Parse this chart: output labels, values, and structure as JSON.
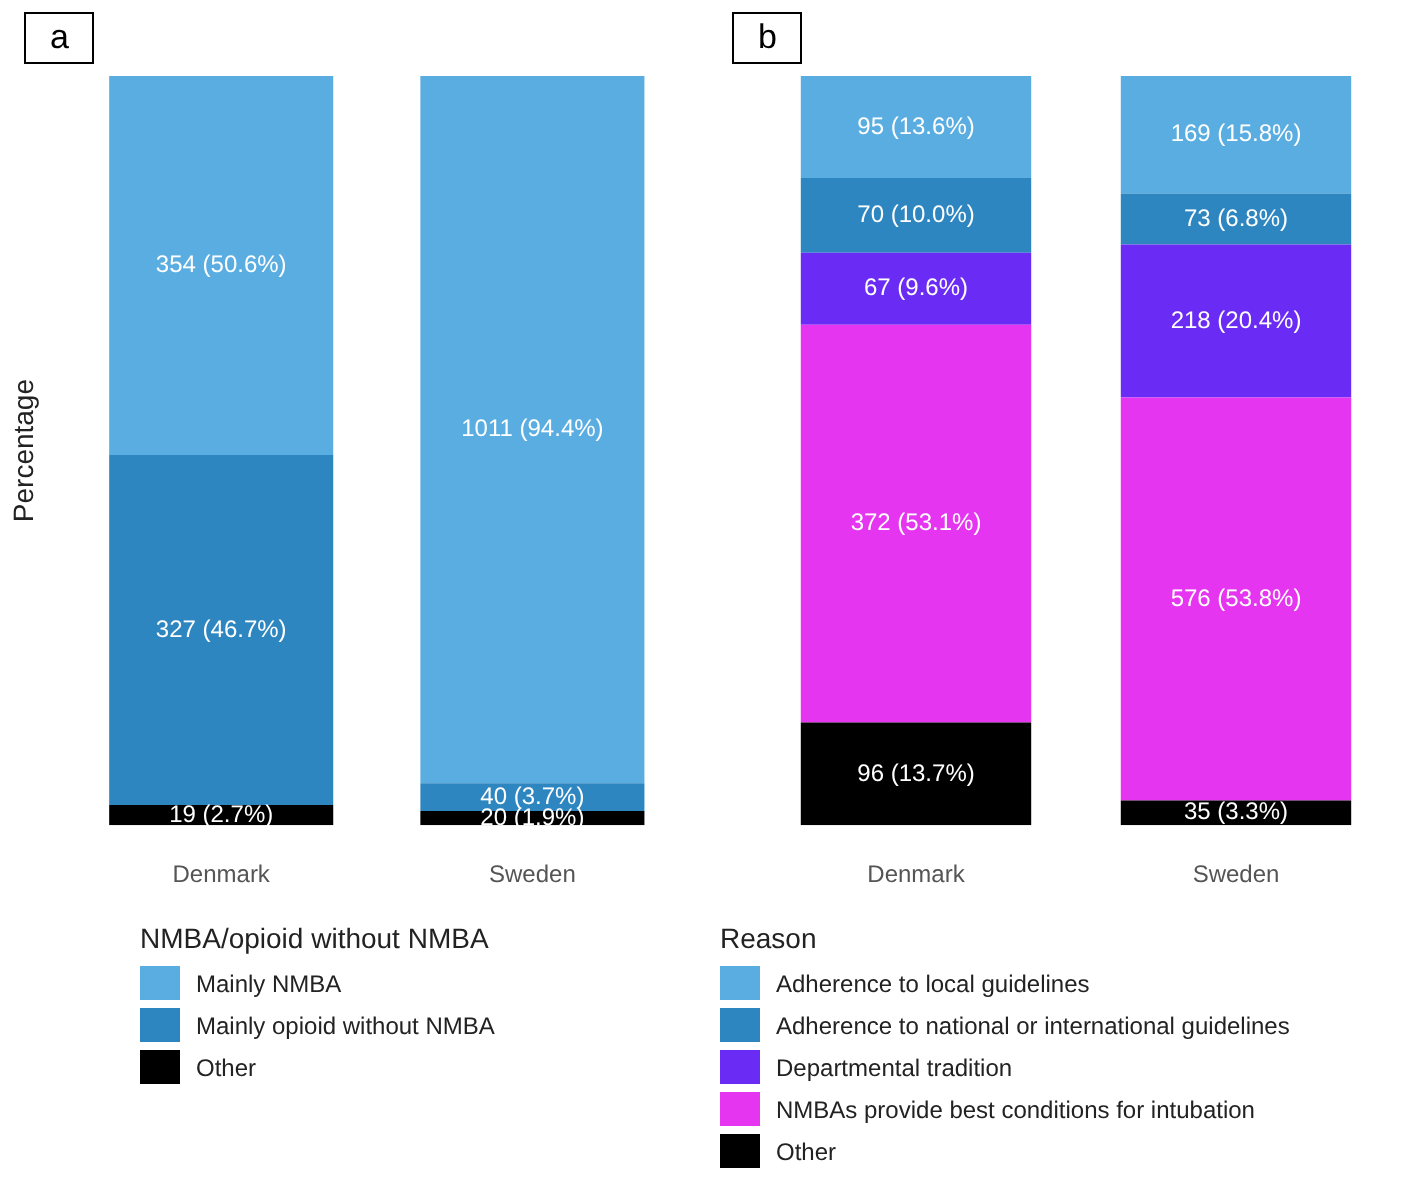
{
  "chart_data": [
    {
      "type": "bar",
      "title": "a",
      "ylabel": "Percentage",
      "categories": [
        "Denmark",
        "Sweden"
      ],
      "stacked": true,
      "ylim": [
        0,
        100
      ],
      "tick_labels": "x",
      "grid": false,
      "legend": "bottom",
      "legend_title": "NMBA/opioid without NMBA",
      "series": [
        {
          "name": "Other",
          "color": "#000000",
          "values": [
            2.7,
            1.9
          ],
          "value_labels": [
            "19 (2.7%)",
            "20 (1.9%)"
          ]
        },
        {
          "name": "Mainly opioid without NMBA",
          "color": "#2e86c1",
          "values": [
            46.7,
            3.7
          ],
          "value_labels": [
            "327 (46.7%)",
            "40 (3.7%)"
          ]
        },
        {
          "name": "Mainly NMBA",
          "color": "#5aade0",
          "values": [
            50.6,
            94.4
          ],
          "value_labels": [
            "354 (50.6%)",
            "1011 (94.4%)"
          ]
        }
      ]
    },
    {
      "type": "bar",
      "title": "b",
      "categories": [
        "Denmark",
        "Sweden"
      ],
      "stacked": true,
      "ylim": [
        0,
        100
      ],
      "tick_labels": "x",
      "grid": false,
      "legend": "bottom",
      "legend_title": "Reason",
      "series": [
        {
          "name": "Other",
          "color": "#000000",
          "values": [
            13.7,
            3.3
          ],
          "value_labels": [
            "96 (13.7%)",
            "35 (3.3%)"
          ]
        },
        {
          "name": "NMBAs provide best conditions for intubation",
          "color": "#e535f0",
          "values": [
            53.1,
            53.8
          ],
          "value_labels": [
            "372 (53.1%)",
            "576 (53.8%)"
          ]
        },
        {
          "name": "Departmental tradition",
          "color": "#6a2cf5",
          "values": [
            9.6,
            20.4
          ],
          "value_labels": [
            "67 (9.6%)",
            "218 (20.4%)"
          ]
        },
        {
          "name": "Adherence to national or international guidelines",
          "color": "#2e86c1",
          "values": [
            10.0,
            6.8
          ],
          "value_labels": [
            "70 (10.0%)",
            "73 (6.8%)"
          ]
        },
        {
          "name": "Adherence to local guidelines",
          "color": "#5aade0",
          "values": [
            13.6,
            15.8
          ],
          "value_labels": [
            "95 (13.6%)",
            "169 (15.8%)"
          ]
        }
      ]
    }
  ]
}
